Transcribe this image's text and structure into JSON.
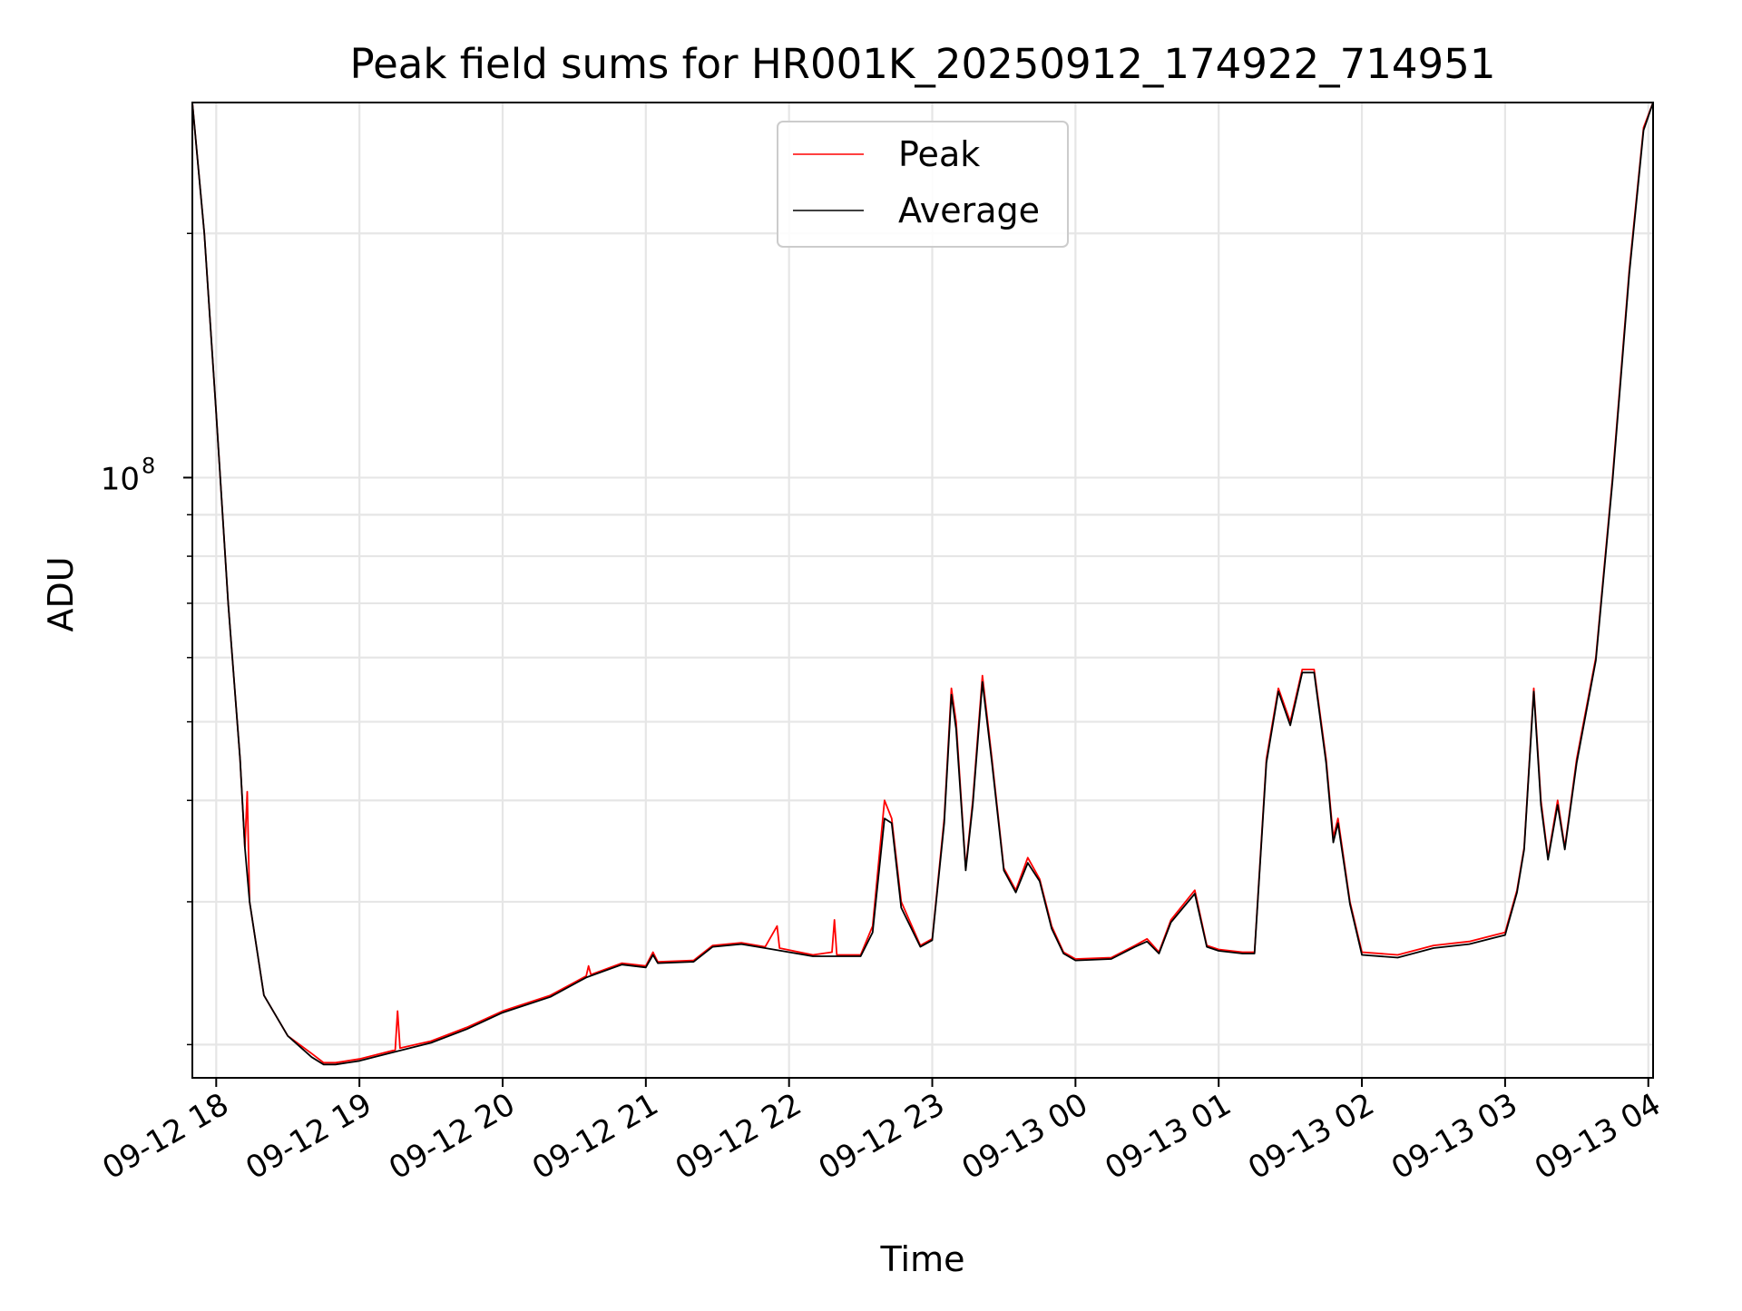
{
  "chart_data": {
    "type": "line",
    "title": "Peak field sums for HR001K_20250912_174922_714951",
    "xlabel": "Time",
    "ylabel": "ADU",
    "x_scale": "time",
    "y_scale": "log",
    "xlim": [
      "2025-09-12 17:50",
      "2025-09-13 04:02"
    ],
    "ylim": [
      18200000,
      290000000
    ],
    "x_ticks": [
      {
        "t": "2025-09-12 18:00",
        "label": "09-12 18"
      },
      {
        "t": "2025-09-12 19:00",
        "label": "09-12 19"
      },
      {
        "t": "2025-09-12 20:00",
        "label": "09-12 20"
      },
      {
        "t": "2025-09-12 21:00",
        "label": "09-12 21"
      },
      {
        "t": "2025-09-12 22:00",
        "label": "09-12 22"
      },
      {
        "t": "2025-09-12 23:00",
        "label": "09-12 23"
      },
      {
        "t": "2025-09-13 00:00",
        "label": "09-13 00"
      },
      {
        "t": "2025-09-13 01:00",
        "label": "09-13 01"
      },
      {
        "t": "2025-09-13 02:00",
        "label": "09-13 02"
      },
      {
        "t": "2025-09-13 03:00",
        "label": "09-13 03"
      },
      {
        "t": "2025-09-13 04:00",
        "label": "09-13 04"
      }
    ],
    "y_major_tick": {
      "value": 100000000,
      "label_base": "10",
      "label_exp": "8"
    },
    "y_minor_ticks": [
      20000000,
      30000000,
      40000000,
      50000000,
      60000000,
      70000000,
      80000000,
      90000000,
      200000000
    ],
    "grid": true,
    "legend_position": "top-center",
    "series": [
      {
        "name": "Peak",
        "color": "#ff0000",
        "points": [
          [
            "2025-09-12 17:50",
            290000000
          ],
          [
            "2025-09-12 17:55",
            200000000
          ],
          [
            "2025-09-12 18:00",
            120000000
          ],
          [
            "2025-09-12 18:05",
            70000000
          ],
          [
            "2025-09-12 18:10",
            45000000
          ],
          [
            "2025-09-12 18:12",
            35000000
          ],
          [
            "2025-09-12 18:13",
            41000000
          ],
          [
            "2025-09-12 18:14",
            30000000
          ],
          [
            "2025-09-12 18:20",
            23000000
          ],
          [
            "2025-09-12 18:30",
            20500000
          ],
          [
            "2025-09-12 18:40",
            19500000
          ],
          [
            "2025-09-12 18:45",
            19000000
          ],
          [
            "2025-09-12 18:50",
            19000000
          ],
          [
            "2025-09-12 19:00",
            19200000
          ],
          [
            "2025-09-12 19:15",
            19700000
          ],
          [
            "2025-09-12 19:16",
            22000000
          ],
          [
            "2025-09-12 19:17",
            19800000
          ],
          [
            "2025-09-12 19:30",
            20200000
          ],
          [
            "2025-09-12 19:45",
            21000000
          ],
          [
            "2025-09-12 20:00",
            22000000
          ],
          [
            "2025-09-12 20:20",
            23000000
          ],
          [
            "2025-09-12 20:35",
            24300000
          ],
          [
            "2025-09-12 20:36",
            25000000
          ],
          [
            "2025-09-12 20:37",
            24400000
          ],
          [
            "2025-09-12 20:50",
            25200000
          ],
          [
            "2025-09-12 21:00",
            25000000
          ],
          [
            "2025-09-12 21:03",
            26000000
          ],
          [
            "2025-09-12 21:05",
            25300000
          ],
          [
            "2025-09-12 21:20",
            25400000
          ],
          [
            "2025-09-12 21:28",
            26500000
          ],
          [
            "2025-09-12 21:40",
            26700000
          ],
          [
            "2025-09-12 21:50",
            26400000
          ],
          [
            "2025-09-12 21:55",
            28000000
          ],
          [
            "2025-09-12 21:56",
            26300000
          ],
          [
            "2025-09-12 22:10",
            25800000
          ],
          [
            "2025-09-12 22:18",
            26000000
          ],
          [
            "2025-09-12 22:19",
            28500000
          ],
          [
            "2025-09-12 22:20",
            25800000
          ],
          [
            "2025-09-12 22:30",
            25800000
          ],
          [
            "2025-09-12 22:35",
            28000000
          ],
          [
            "2025-09-12 22:40",
            40000000
          ],
          [
            "2025-09-12 22:43",
            38000000
          ],
          [
            "2025-09-12 22:47",
            30000000
          ],
          [
            "2025-09-12 22:55",
            26500000
          ],
          [
            "2025-09-12 23:00",
            27000000
          ],
          [
            "2025-09-12 23:05",
            38000000
          ],
          [
            "2025-09-12 23:08",
            55000000
          ],
          [
            "2025-09-12 23:10",
            50000000
          ],
          [
            "2025-09-12 23:14",
            33000000
          ],
          [
            "2025-09-12 23:17",
            40000000
          ],
          [
            "2025-09-12 23:21",
            57000000
          ],
          [
            "2025-09-12 23:25",
            45000000
          ],
          [
            "2025-09-12 23:30",
            33000000
          ],
          [
            "2025-09-12 23:35",
            31000000
          ],
          [
            "2025-09-12 23:40",
            34000000
          ],
          [
            "2025-09-12 23:45",
            32000000
          ],
          [
            "2025-09-12 23:50",
            28000000
          ],
          [
            "2025-09-12 23:55",
            26000000
          ],
          [
            "2025-09-13 00:00",
            25500000
          ],
          [
            "2025-09-13 00:15",
            25600000
          ],
          [
            "2025-09-13 00:25",
            26500000
          ],
          [
            "2025-09-13 00:30",
            27000000
          ],
          [
            "2025-09-13 00:35",
            26000000
          ],
          [
            "2025-09-13 00:40",
            28500000
          ],
          [
            "2025-09-13 00:50",
            31000000
          ],
          [
            "2025-09-13 00:55",
            26500000
          ],
          [
            "2025-09-13 01:00",
            26200000
          ],
          [
            "2025-09-13 01:10",
            26000000
          ],
          [
            "2025-09-13 01:15",
            26000000
          ],
          [
            "2025-09-13 01:20",
            45000000
          ],
          [
            "2025-09-13 01:25",
            55000000
          ],
          [
            "2025-09-13 01:30",
            50000000
          ],
          [
            "2025-09-13 01:35",
            58000000
          ],
          [
            "2025-09-13 01:40",
            58000000
          ],
          [
            "2025-09-13 01:45",
            45000000
          ],
          [
            "2025-09-13 01:48",
            36000000
          ],
          [
            "2025-09-13 01:50",
            38000000
          ],
          [
            "2025-09-13 01:55",
            30000000
          ],
          [
            "2025-09-13 02:00",
            26000000
          ],
          [
            "2025-09-13 02:15",
            25800000
          ],
          [
            "2025-09-13 02:30",
            26500000
          ],
          [
            "2025-09-13 02:45",
            26800000
          ],
          [
            "2025-09-13 03:00",
            27500000
          ],
          [
            "2025-09-13 03:05",
            31000000
          ],
          [
            "2025-09-13 03:08",
            35000000
          ],
          [
            "2025-09-13 03:12",
            55000000
          ],
          [
            "2025-09-13 03:15",
            40000000
          ],
          [
            "2025-09-13 03:18",
            34000000
          ],
          [
            "2025-09-13 03:22",
            40000000
          ],
          [
            "2025-09-13 03:25",
            35000000
          ],
          [
            "2025-09-13 03:30",
            45000000
          ],
          [
            "2025-09-13 03:38",
            60000000
          ],
          [
            "2025-09-13 03:45",
            100000000
          ],
          [
            "2025-09-13 03:52",
            180000000
          ],
          [
            "2025-09-13 03:58",
            270000000
          ],
          [
            "2025-09-13 04:02",
            290000000
          ]
        ]
      },
      {
        "name": "Average",
        "color": "#000000",
        "points": [
          [
            "2025-09-12 17:50",
            290000000
          ],
          [
            "2025-09-12 17:55",
            200000000
          ],
          [
            "2025-09-12 18:00",
            120000000
          ],
          [
            "2025-09-12 18:05",
            70000000
          ],
          [
            "2025-09-12 18:10",
            45000000
          ],
          [
            "2025-09-12 18:12",
            35000000
          ],
          [
            "2025-09-12 18:14",
            30000000
          ],
          [
            "2025-09-12 18:20",
            23000000
          ],
          [
            "2025-09-12 18:30",
            20500000
          ],
          [
            "2025-09-12 18:40",
            19300000
          ],
          [
            "2025-09-12 18:45",
            18900000
          ],
          [
            "2025-09-12 18:50",
            18900000
          ],
          [
            "2025-09-12 19:00",
            19100000
          ],
          [
            "2025-09-12 19:15",
            19600000
          ],
          [
            "2025-09-12 19:30",
            20100000
          ],
          [
            "2025-09-12 19:45",
            20900000
          ],
          [
            "2025-09-12 20:00",
            21900000
          ],
          [
            "2025-09-12 20:20",
            22900000
          ],
          [
            "2025-09-12 20:35",
            24200000
          ],
          [
            "2025-09-12 20:50",
            25100000
          ],
          [
            "2025-09-12 21:00",
            24900000
          ],
          [
            "2025-09-12 21:03",
            25800000
          ],
          [
            "2025-09-12 21:05",
            25200000
          ],
          [
            "2025-09-12 21:20",
            25300000
          ],
          [
            "2025-09-12 21:28",
            26400000
          ],
          [
            "2025-09-12 21:40",
            26600000
          ],
          [
            "2025-09-12 21:50",
            26300000
          ],
          [
            "2025-09-12 22:00",
            26000000
          ],
          [
            "2025-09-12 22:10",
            25700000
          ],
          [
            "2025-09-12 22:20",
            25700000
          ],
          [
            "2025-09-12 22:30",
            25700000
          ],
          [
            "2025-09-12 22:35",
            27500000
          ],
          [
            "2025-09-12 22:40",
            38000000
          ],
          [
            "2025-09-12 22:43",
            37500000
          ],
          [
            "2025-09-12 22:47",
            29500000
          ],
          [
            "2025-09-12 22:55",
            26400000
          ],
          [
            "2025-09-12 23:00",
            26900000
          ],
          [
            "2025-09-12 23:05",
            37500000
          ],
          [
            "2025-09-12 23:08",
            54000000
          ],
          [
            "2025-09-12 23:10",
            49000000
          ],
          [
            "2025-09-12 23:14",
            32800000
          ],
          [
            "2025-09-12 23:17",
            39500000
          ],
          [
            "2025-09-12 23:21",
            56000000
          ],
          [
            "2025-09-12 23:25",
            44500000
          ],
          [
            "2025-09-12 23:30",
            32800000
          ],
          [
            "2025-09-12 23:35",
            30800000
          ],
          [
            "2025-09-12 23:40",
            33500000
          ],
          [
            "2025-09-12 23:45",
            31800000
          ],
          [
            "2025-09-12 23:50",
            27800000
          ],
          [
            "2025-09-12 23:55",
            25900000
          ],
          [
            "2025-09-13 00:00",
            25400000
          ],
          [
            "2025-09-13 00:15",
            25500000
          ],
          [
            "2025-09-13 00:25",
            26400000
          ],
          [
            "2025-09-13 00:30",
            26800000
          ],
          [
            "2025-09-13 00:35",
            25900000
          ],
          [
            "2025-09-13 00:40",
            28300000
          ],
          [
            "2025-09-13 00:50",
            30700000
          ],
          [
            "2025-09-13 00:55",
            26400000
          ],
          [
            "2025-09-13 01:00",
            26100000
          ],
          [
            "2025-09-13 01:10",
            25900000
          ],
          [
            "2025-09-13 01:15",
            25900000
          ],
          [
            "2025-09-13 01:20",
            44500000
          ],
          [
            "2025-09-13 01:25",
            54500000
          ],
          [
            "2025-09-13 01:30",
            49500000
          ],
          [
            "2025-09-13 01:35",
            57500000
          ],
          [
            "2025-09-13 01:40",
            57500000
          ],
          [
            "2025-09-13 01:45",
            44500000
          ],
          [
            "2025-09-13 01:48",
            35500000
          ],
          [
            "2025-09-13 01:50",
            37500000
          ],
          [
            "2025-09-13 01:55",
            29800000
          ],
          [
            "2025-09-13 02:00",
            25800000
          ],
          [
            "2025-09-13 02:15",
            25600000
          ],
          [
            "2025-09-13 02:30",
            26300000
          ],
          [
            "2025-09-13 02:45",
            26600000
          ],
          [
            "2025-09-13 03:00",
            27300000
          ],
          [
            "2025-09-13 03:05",
            30800000
          ],
          [
            "2025-09-13 03:08",
            34800000
          ],
          [
            "2025-09-13 03:12",
            54500000
          ],
          [
            "2025-09-13 03:15",
            39500000
          ],
          [
            "2025-09-13 03:18",
            33800000
          ],
          [
            "2025-09-13 03:22",
            39500000
          ],
          [
            "2025-09-13 03:25",
            34800000
          ],
          [
            "2025-09-13 03:30",
            44500000
          ],
          [
            "2025-09-13 03:38",
            59500000
          ],
          [
            "2025-09-13 03:45",
            99000000
          ],
          [
            "2025-09-13 03:52",
            178000000
          ],
          [
            "2025-09-13 03:58",
            268000000
          ],
          [
            "2025-09-13 04:02",
            290000000
          ]
        ]
      }
    ]
  }
}
